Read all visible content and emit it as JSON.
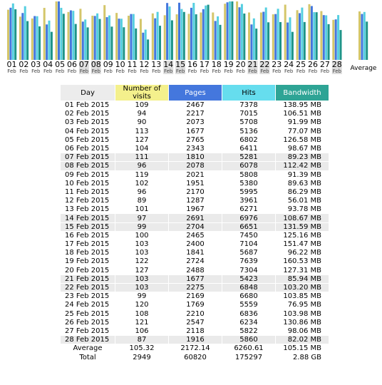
{
  "colors": {
    "visits": "#d4c66a",
    "pages": "#4477dd",
    "hits": "#55cfe0",
    "bandwidth": "#1d9488",
    "weekend_label_bg": "#dddddd"
  },
  "chart_data": {
    "type": "bar",
    "categories": [
      "01",
      "02",
      "03",
      "04",
      "05",
      "06",
      "07",
      "08",
      "09",
      "10",
      "11",
      "12",
      "13",
      "14",
      "15",
      "16",
      "17",
      "18",
      "19",
      "20",
      "21",
      "22",
      "23",
      "24",
      "25",
      "26",
      "27",
      "28"
    ],
    "month_label": "Feb",
    "weekend_days": [
      "07",
      "08",
      "14",
      "15",
      "21",
      "22",
      "28"
    ],
    "average_label": "Average",
    "series": [
      {
        "name": "Number of visits",
        "values": [
          109,
          94,
          90,
          113,
          127,
          104,
          111,
          96,
          119,
          102,
          96,
          89,
          101,
          97,
          99,
          100,
          103,
          103,
          122,
          127,
          103,
          103,
          99,
          120,
          108,
          121,
          106,
          87
        ],
        "average": 105.32
      },
      {
        "name": "Pages",
        "values": [
          2467,
          2217,
          2073,
          1677,
          2765,
          2343,
          1810,
          2078,
          2021,
          1951,
          2170,
          1287,
          1967,
          2691,
          2704,
          2465,
          2400,
          1841,
          2724,
          2488,
          1677,
          2275,
          2169,
          1769,
          2210,
          2547,
          2118,
          1916
        ],
        "average": 2172.14
      },
      {
        "name": "Hits",
        "values": [
          7378,
          7015,
          5708,
          5136,
          6802,
          6411,
          5281,
          6078,
          5808,
          5380,
          5995,
          3961,
          6271,
          6976,
          6651,
          7450,
          7104,
          5687,
          7639,
          7304,
          5423,
          6848,
          6680,
          5559,
          6836,
          6234,
          5822,
          5860
        ],
        "average": 6260.61
      },
      {
        "name": "Bandwidth",
        "values": [
          138.95,
          106.51,
          91.99,
          77.07,
          126.58,
          98.67,
          89.23,
          112.42,
          91.39,
          89.63,
          86.29,
          56.01,
          93.78,
          108.67,
          131.59,
          125.16,
          151.47,
          96.22,
          160.53,
          127.31,
          85.94,
          103.2,
          103.85,
          76.95,
          103.98,
          130.86,
          98.06,
          82.02
        ],
        "average": 105.15
      }
    ]
  },
  "table": {
    "headers": {
      "day": "Day",
      "visits_line1": "Number of",
      "visits_line2": "visits",
      "pages": "Pages",
      "hits": "Hits",
      "bandwidth": "Bandwidth"
    },
    "rows": [
      {
        "day": "01 Feb 2015",
        "visits": "109",
        "pages": "2467",
        "hits": "7378",
        "bandwidth": "138.95 MB",
        "weekend": false
      },
      {
        "day": "02 Feb 2015",
        "visits": "94",
        "pages": "2217",
        "hits": "7015",
        "bandwidth": "106.51 MB",
        "weekend": false
      },
      {
        "day": "03 Feb 2015",
        "visits": "90",
        "pages": "2073",
        "hits": "5708",
        "bandwidth": "91.99 MB",
        "weekend": false
      },
      {
        "day": "04 Feb 2015",
        "visits": "113",
        "pages": "1677",
        "hits": "5136",
        "bandwidth": "77.07 MB",
        "weekend": false
      },
      {
        "day": "05 Feb 2015",
        "visits": "127",
        "pages": "2765",
        "hits": "6802",
        "bandwidth": "126.58 MB",
        "weekend": false
      },
      {
        "day": "06 Feb 2015",
        "visits": "104",
        "pages": "2343",
        "hits": "6411",
        "bandwidth": "98.67 MB",
        "weekend": false
      },
      {
        "day": "07 Feb 2015",
        "visits": "111",
        "pages": "1810",
        "hits": "5281",
        "bandwidth": "89.23 MB",
        "weekend": true
      },
      {
        "day": "08 Feb 2015",
        "visits": "96",
        "pages": "2078",
        "hits": "6078",
        "bandwidth": "112.42 MB",
        "weekend": true
      },
      {
        "day": "09 Feb 2015",
        "visits": "119",
        "pages": "2021",
        "hits": "5808",
        "bandwidth": "91.39 MB",
        "weekend": false
      },
      {
        "day": "10 Feb 2015",
        "visits": "102",
        "pages": "1951",
        "hits": "5380",
        "bandwidth": "89.63 MB",
        "weekend": false
      },
      {
        "day": "11 Feb 2015",
        "visits": "96",
        "pages": "2170",
        "hits": "5995",
        "bandwidth": "86.29 MB",
        "weekend": false
      },
      {
        "day": "12 Feb 2015",
        "visits": "89",
        "pages": "1287",
        "hits": "3961",
        "bandwidth": "56.01 MB",
        "weekend": false
      },
      {
        "day": "13 Feb 2015",
        "visits": "101",
        "pages": "1967",
        "hits": "6271",
        "bandwidth": "93.78 MB",
        "weekend": false
      },
      {
        "day": "14 Feb 2015",
        "visits": "97",
        "pages": "2691",
        "hits": "6976",
        "bandwidth": "108.67 MB",
        "weekend": true
      },
      {
        "day": "15 Feb 2015",
        "visits": "99",
        "pages": "2704",
        "hits": "6651",
        "bandwidth": "131.59 MB",
        "weekend": true
      },
      {
        "day": "16 Feb 2015",
        "visits": "100",
        "pages": "2465",
        "hits": "7450",
        "bandwidth": "125.16 MB",
        "weekend": false
      },
      {
        "day": "17 Feb 2015",
        "visits": "103",
        "pages": "2400",
        "hits": "7104",
        "bandwidth": "151.47 MB",
        "weekend": false
      },
      {
        "day": "18 Feb 2015",
        "visits": "103",
        "pages": "1841",
        "hits": "5687",
        "bandwidth": "96.22 MB",
        "weekend": false
      },
      {
        "day": "19 Feb 2015",
        "visits": "122",
        "pages": "2724",
        "hits": "7639",
        "bandwidth": "160.53 MB",
        "weekend": false
      },
      {
        "day": "20 Feb 2015",
        "visits": "127",
        "pages": "2488",
        "hits": "7304",
        "bandwidth": "127.31 MB",
        "weekend": false
      },
      {
        "day": "21 Feb 2015",
        "visits": "103",
        "pages": "1677",
        "hits": "5423",
        "bandwidth": "85.94 MB",
        "weekend": true
      },
      {
        "day": "22 Feb 2015",
        "visits": "103",
        "pages": "2275",
        "hits": "6848",
        "bandwidth": "103.20 MB",
        "weekend": true
      },
      {
        "day": "23 Feb 2015",
        "visits": "99",
        "pages": "2169",
        "hits": "6680",
        "bandwidth": "103.85 MB",
        "weekend": false
      },
      {
        "day": "24 Feb 2015",
        "visits": "120",
        "pages": "1769",
        "hits": "5559",
        "bandwidth": "76.95 MB",
        "weekend": false
      },
      {
        "day": "25 Feb 2015",
        "visits": "108",
        "pages": "2210",
        "hits": "6836",
        "bandwidth": "103.98 MB",
        "weekend": false
      },
      {
        "day": "26 Feb 2015",
        "visits": "121",
        "pages": "2547",
        "hits": "6234",
        "bandwidth": "130.86 MB",
        "weekend": false
      },
      {
        "day": "27 Feb 2015",
        "visits": "106",
        "pages": "2118",
        "hits": "5822",
        "bandwidth": "98.06 MB",
        "weekend": false
      },
      {
        "day": "28 Feb 2015",
        "visits": "87",
        "pages": "1916",
        "hits": "5860",
        "bandwidth": "82.02 MB",
        "weekend": true
      }
    ],
    "average": {
      "label": "Average",
      "visits": "105.32",
      "pages": "2172.14",
      "hits": "6260.61",
      "bandwidth": "105.15 MB"
    },
    "total": {
      "label": "Total",
      "visits": "2949",
      "pages": "60820",
      "hits": "175297",
      "bandwidth": "2.88 GB"
    }
  }
}
